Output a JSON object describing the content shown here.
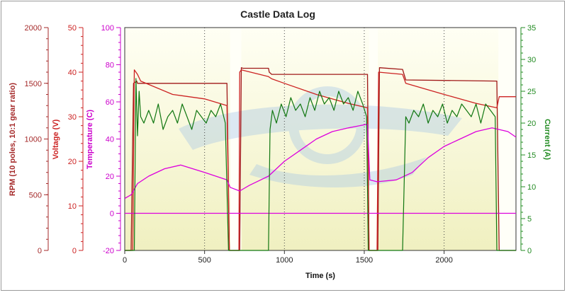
{
  "chart_data": {
    "type": "line",
    "title": "Castle Data Log",
    "xlabel": "Time (s)",
    "xlim": [
      0,
      2450
    ],
    "xticks": [
      0,
      500,
      1000,
      1500,
      2000
    ],
    "axes": {
      "rpm": {
        "label": "RPM (10 poles, 10:1 gear ratio)",
        "range": [
          0,
          2000
        ],
        "ticks": [
          0,
          500,
          1000,
          1500,
          2000
        ],
        "color": "#a52a2a"
      },
      "voltage": {
        "label": "Voltage (V)",
        "range": [
          0,
          50
        ],
        "ticks": [
          0,
          10,
          20,
          30,
          40,
          50
        ],
        "color": "#cc2222"
      },
      "temperature": {
        "label": "Temperature (C)",
        "range": [
          -20,
          100
        ],
        "ticks": [
          -20,
          0,
          20,
          40,
          60,
          80,
          100
        ],
        "color": "#cc00cc"
      },
      "current": {
        "label": "Current (A)",
        "range": [
          0,
          35
        ],
        "ticks": [
          0,
          5,
          10,
          15,
          20,
          25,
          30,
          35
        ],
        "color": "#228b22"
      }
    },
    "series": [
      {
        "axis": "rpm",
        "color": "#a01818",
        "points": [
          [
            0,
            0
          ],
          [
            40,
            0
          ],
          [
            55,
            1500
          ],
          [
            75,
            1520
          ],
          [
            80,
            1500
          ],
          [
            640,
            1500
          ],
          [
            655,
            0
          ],
          [
            700,
            0
          ],
          [
            720,
            0
          ],
          [
            730,
            1640
          ],
          [
            740,
            1635
          ],
          [
            900,
            1635
          ],
          [
            905,
            1600
          ],
          [
            920,
            1580
          ],
          [
            1520,
            1580
          ],
          [
            1530,
            0
          ],
          [
            1585,
            0
          ],
          [
            1595,
            1640
          ],
          [
            1740,
            1625
          ],
          [
            1760,
            1530
          ],
          [
            2330,
            1520
          ],
          [
            2345,
            0
          ],
          [
            2450,
            0
          ]
        ]
      },
      {
        "axis": "voltage",
        "color": "#cc2222",
        "points": [
          [
            0,
            0
          ],
          [
            50,
            0
          ],
          [
            60,
            40.5
          ],
          [
            80,
            39.5
          ],
          [
            100,
            38
          ],
          [
            300,
            35
          ],
          [
            500,
            34
          ],
          [
            640,
            32.5
          ],
          [
            655,
            0
          ],
          [
            715,
            0
          ],
          [
            720,
            40
          ],
          [
            730,
            40.5
          ],
          [
            900,
            39
          ],
          [
            920,
            38.5
          ],
          [
            1000,
            37.5
          ],
          [
            1200,
            35
          ],
          [
            1400,
            33
          ],
          [
            1520,
            32
          ],
          [
            1530,
            0
          ],
          [
            1580,
            0
          ],
          [
            1590,
            40
          ],
          [
            1740,
            39.5
          ],
          [
            1760,
            37.5
          ],
          [
            2000,
            35
          ],
          [
            2200,
            33
          ],
          [
            2330,
            32
          ],
          [
            2345,
            34.5
          ],
          [
            2450,
            34.5
          ]
        ]
      },
      {
        "axis": "temperature",
        "color": "#dd00dd",
        "points": [
          [
            0,
            8
          ],
          [
            40,
            10
          ],
          [
            80,
            16
          ],
          [
            150,
            20
          ],
          [
            250,
            24
          ],
          [
            350,
            26
          ],
          [
            500,
            22
          ],
          [
            640,
            18
          ],
          [
            660,
            14
          ],
          [
            720,
            12
          ],
          [
            780,
            15
          ],
          [
            900,
            20
          ],
          [
            1000,
            28
          ],
          [
            1100,
            34
          ],
          [
            1200,
            40
          ],
          [
            1300,
            44
          ],
          [
            1400,
            46
          ],
          [
            1520,
            48
          ],
          [
            1535,
            18
          ],
          [
            1580,
            17
          ],
          [
            1700,
            18
          ],
          [
            1800,
            22
          ],
          [
            1900,
            30
          ],
          [
            2000,
            36
          ],
          [
            2100,
            40
          ],
          [
            2200,
            44
          ],
          [
            2300,
            46
          ],
          [
            2400,
            44
          ],
          [
            2450,
            41
          ]
        ]
      },
      {
        "axis": "temperature",
        "color": "#dd00dd",
        "points": [
          [
            0,
            0
          ],
          [
            2450,
            0
          ]
        ]
      },
      {
        "axis": "current",
        "color": "#117711",
        "points": [
          [
            0,
            0
          ],
          [
            60,
            0
          ],
          [
            70,
            27
          ],
          [
            80,
            18
          ],
          [
            90,
            25
          ],
          [
            100,
            21
          ],
          [
            120,
            20
          ],
          [
            150,
            22
          ],
          [
            180,
            20
          ],
          [
            210,
            23
          ],
          [
            240,
            19
          ],
          [
            270,
            21
          ],
          [
            300,
            22
          ],
          [
            330,
            20
          ],
          [
            360,
            23
          ],
          [
            390,
            21
          ],
          [
            420,
            19
          ],
          [
            450,
            22
          ],
          [
            480,
            21
          ],
          [
            510,
            20
          ],
          [
            540,
            22
          ],
          [
            570,
            21
          ],
          [
            600,
            23
          ],
          [
            630,
            20
          ],
          [
            650,
            0
          ],
          [
            700,
            0
          ],
          [
            900,
            0
          ],
          [
            910,
            19
          ],
          [
            925,
            22
          ],
          [
            950,
            20
          ],
          [
            980,
            23
          ],
          [
            1010,
            21
          ],
          [
            1040,
            24
          ],
          [
            1070,
            22
          ],
          [
            1100,
            23
          ],
          [
            1130,
            21
          ],
          [
            1160,
            24
          ],
          [
            1190,
            22
          ],
          [
            1220,
            25
          ],
          [
            1250,
            23
          ],
          [
            1280,
            24
          ],
          [
            1310,
            22
          ],
          [
            1340,
            25
          ],
          [
            1370,
            23
          ],
          [
            1400,
            24
          ],
          [
            1430,
            22
          ],
          [
            1460,
            25
          ],
          [
            1490,
            23
          ],
          [
            1515,
            21
          ],
          [
            1525,
            0
          ],
          [
            1740,
            0
          ],
          [
            1760,
            21
          ],
          [
            1780,
            20
          ],
          [
            1810,
            22
          ],
          [
            1840,
            21
          ],
          [
            1870,
            23
          ],
          [
            1900,
            20
          ],
          [
            1930,
            22
          ],
          [
            1960,
            21
          ],
          [
            1990,
            23
          ],
          [
            2020,
            20
          ],
          [
            2050,
            22
          ],
          [
            2080,
            21
          ],
          [
            2110,
            23
          ],
          [
            2140,
            22
          ],
          [
            2170,
            21
          ],
          [
            2200,
            23
          ],
          [
            2230,
            20
          ],
          [
            2260,
            23
          ],
          [
            2290,
            22
          ],
          [
            2320,
            21
          ],
          [
            2330,
            0
          ],
          [
            2450,
            0
          ]
        ]
      }
    ],
    "grid": "vertical dotted",
    "background_bands": [
      [
        0,
        660
      ],
      [
        730,
        1530
      ],
      [
        1585,
        2340
      ]
    ]
  }
}
